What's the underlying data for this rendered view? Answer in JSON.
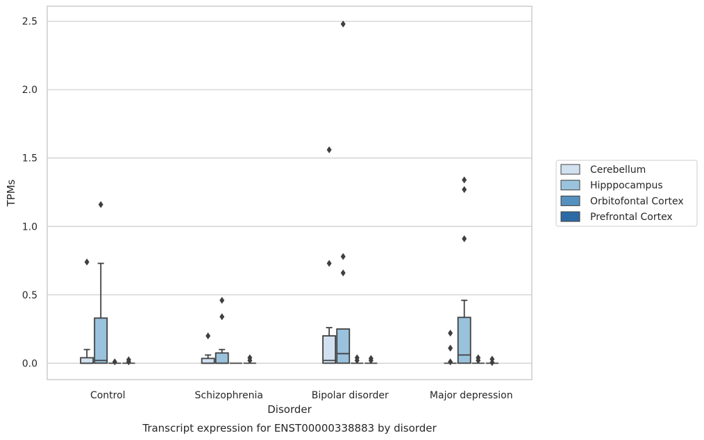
{
  "chart_data": {
    "type": "box",
    "xlabel": "Disorder",
    "ylabel": "TPMs",
    "caption": "Transcript expression for ENST00000338883 by disorder",
    "categories": [
      "Control",
      "Schizophrenia",
      "Bipolar disorder",
      "Major depression"
    ],
    "ylim": [
      -0.12,
      2.61
    ],
    "yticks": [
      0.0,
      0.5,
      1.0,
      1.5,
      2.0,
      2.5
    ],
    "ytick_labels": [
      "0.0",
      "0.5",
      "1.0",
      "1.5",
      "2.0",
      "2.5"
    ],
    "grid": "horizontal",
    "legend_position": "right",
    "series": [
      {
        "name": "Cerebellum",
        "color": "#d2e1f0",
        "boxes": [
          {
            "min": 0.0,
            "q1": 0.0,
            "median": 0.0,
            "q3": 0.04,
            "max": 0.1,
            "outliers": [
              0.74
            ]
          },
          {
            "min": 0.0,
            "q1": 0.0,
            "median": 0.0,
            "q3": 0.035,
            "max": 0.06,
            "outliers": [
              0.2
            ]
          },
          {
            "min": 0.0,
            "q1": 0.0,
            "median": 0.02,
            "q3": 0.2,
            "max": 0.26,
            "outliers": [
              0.73,
              1.56
            ]
          },
          {
            "min": 0.0,
            "q1": 0.0,
            "median": 0.0,
            "q3": 0.0,
            "max": 0.0,
            "outliers": [
              0.01,
              0.11,
              0.22
            ]
          }
        ]
      },
      {
        "name": "Hipppocampus",
        "color": "#9ac2dc",
        "boxes": [
          {
            "min": 0.0,
            "q1": 0.0,
            "median": 0.02,
            "q3": 0.33,
            "max": 0.73,
            "outliers": [
              1.16
            ]
          },
          {
            "min": 0.0,
            "q1": 0.0,
            "median": 0.0,
            "q3": 0.075,
            "max": 0.1,
            "outliers": [
              0.34,
              0.46
            ]
          },
          {
            "min": 0.0,
            "q1": 0.0,
            "median": 0.07,
            "q3": 0.25,
            "max": 0.25,
            "outliers": [
              0.66,
              0.78,
              2.48
            ]
          },
          {
            "min": 0.0,
            "q1": 0.0,
            "median": 0.06,
            "q3": 0.335,
            "max": 0.46,
            "outliers": [
              0.91,
              1.27,
              1.34
            ]
          }
        ]
      },
      {
        "name": "Orbitofontal Cortex",
        "color": "#5591be",
        "boxes": [
          {
            "min": 0.0,
            "q1": 0.0,
            "median": 0.0,
            "q3": 0.0,
            "max": 0.0,
            "outliers": [
              0.01
            ]
          },
          {
            "min": 0.0,
            "q1": 0.0,
            "median": 0.0,
            "q3": 0.0,
            "max": 0.0,
            "outliers": []
          },
          {
            "min": 0.0,
            "q1": 0.0,
            "median": 0.0,
            "q3": 0.0,
            "max": 0.0,
            "outliers": [
              0.02,
              0.04
            ]
          },
          {
            "min": 0.0,
            "q1": 0.0,
            "median": 0.0,
            "q3": 0.0,
            "max": 0.0,
            "outliers": [
              0.02,
              0.04
            ]
          }
        ]
      },
      {
        "name": "Prefrontal Cortex",
        "color": "#2c6aa6",
        "boxes": [
          {
            "min": 0.0,
            "q1": 0.0,
            "median": 0.0,
            "q3": 0.0,
            "max": 0.0,
            "outliers": [
              0.01,
              0.025
            ]
          },
          {
            "min": 0.0,
            "q1": 0.0,
            "median": 0.0,
            "q3": 0.0,
            "max": 0.0,
            "outliers": [
              0.02,
              0.04
            ]
          },
          {
            "min": 0.0,
            "q1": 0.0,
            "median": 0.0,
            "q3": 0.0,
            "max": 0.0,
            "outliers": [
              0.02,
              0.035
            ]
          },
          {
            "min": 0.0,
            "q1": 0.0,
            "median": 0.0,
            "q3": 0.0,
            "max": 0.0,
            "outliers": [
              0.005,
              0.03
            ]
          }
        ]
      }
    ]
  }
}
